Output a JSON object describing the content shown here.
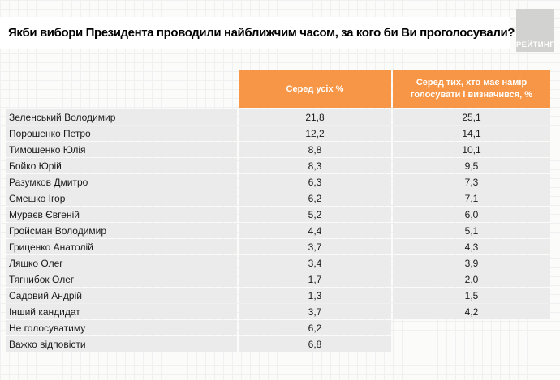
{
  "header": {
    "title": "Якби вибори Президента проводили найближчим часом, за кого би Ви проголосували?",
    "logo_text": "РЕЙТИНГ"
  },
  "chart_data": {
    "type": "table",
    "title": "Якби вибори Президента проводили найближчим часом, за кого би Ви проголосували?",
    "columns": [
      "Серед усіх %",
      "Серед тих, хто має намір голосувати і визначився, %"
    ],
    "rows": [
      {
        "name": "Зеленський Володимир",
        "all": "21,8",
        "decided": "25,1"
      },
      {
        "name": "Порошенко Петро",
        "all": "12,2",
        "decided": "14,1"
      },
      {
        "name": "Тимошенко Юлія",
        "all": "8,8",
        "decided": "10,1"
      },
      {
        "name": "Бойко Юрій",
        "all": "8,3",
        "decided": "9,5"
      },
      {
        "name": "Разумков Дмитро",
        "all": "6,3",
        "decided": "7,3"
      },
      {
        "name": "Смешко Ігор",
        "all": "6,2",
        "decided": "7,1"
      },
      {
        "name": "Мураєв Євгеній",
        "all": "5,2",
        "decided": "6,0"
      },
      {
        "name": "Гройсман Володимир",
        "all": "4,4",
        "decided": "5,1"
      },
      {
        "name": "Гриценко Анатолій",
        "all": "3,7",
        "decided": "4,3"
      },
      {
        "name": "Ляшко Олег",
        "all": "3,4",
        "decided": "3,9"
      },
      {
        "name": "Тягнибок Олег",
        "all": "1,7",
        "decided": "2,0"
      },
      {
        "name": "Садовий Андрій",
        "all": "1,3",
        "decided": "1,5"
      },
      {
        "name": "Інший кандидат",
        "all": "3,7",
        "decided": "4,2"
      },
      {
        "name": "Не голосуватиму",
        "all": "6,2",
        "decided": null
      },
      {
        "name": "Важко відповісти",
        "all": "6,8",
        "decided": null
      }
    ]
  },
  "colors": {
    "header_orange": "#F79646",
    "row_gray": "#EBEBEB",
    "logo_gray": "#D2D2D0",
    "title_bar_white": "#FFFFFF"
  }
}
